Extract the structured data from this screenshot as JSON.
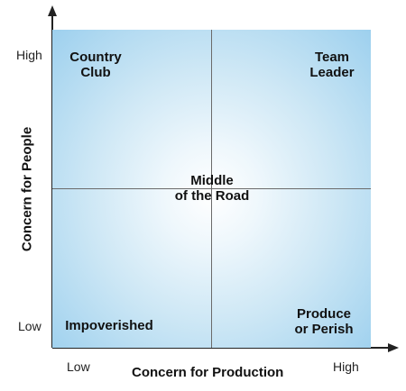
{
  "diagram": {
    "quadrants": {
      "top_left": "Country\nClub",
      "top_right": "Team\nLeader",
      "center": "Middle\nof the Road",
      "bottom_left": "Impoverished",
      "bottom_right": "Produce\nor Perish"
    },
    "y_axis": {
      "title": "Concern for People",
      "high": "High",
      "low": "Low"
    },
    "x_axis": {
      "title": "Concern for Production",
      "low": "Low",
      "high": "High"
    },
    "colors": {
      "grid_edge": "#9dd0ee",
      "grid_center": "#ffffff",
      "axis": "#222222",
      "divider": "#6b6b6b"
    }
  }
}
